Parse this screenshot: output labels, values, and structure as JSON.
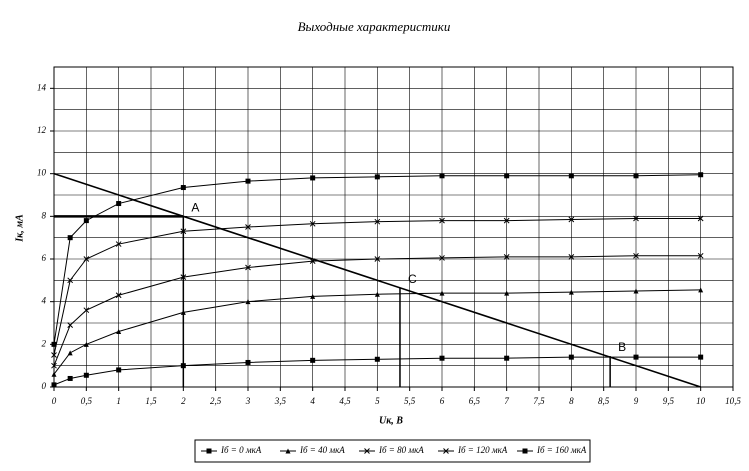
{
  "chart_data": {
    "type": "line",
    "title": "Выходные характеристики",
    "x_label": "Uк, В",
    "y_label": "Iк, мА",
    "x": [
      0,
      0.25,
      0.5,
      1,
      2,
      3,
      4,
      5,
      6,
      7,
      8,
      9,
      10
    ],
    "series": [
      {
        "name": "Iб = 0 мкА",
        "color": "#000000",
        "marker": "square",
        "values": [
          0.1,
          0.4,
          0.55,
          0.8,
          1.0,
          1.15,
          1.25,
          1.3,
          1.35,
          1.35,
          1.4,
          1.4,
          1.4
        ]
      },
      {
        "name": "Iб = 40 мкА",
        "color": "#000000",
        "marker": "triangle",
        "values": [
          0.6,
          1.6,
          2.0,
          2.6,
          3.5,
          4.0,
          4.25,
          4.35,
          4.4,
          4.4,
          4.45,
          4.5,
          4.55
        ]
      },
      {
        "name": "Iб = 80 мкА",
        "color": "#000000",
        "marker": "x",
        "values": [
          1.0,
          2.9,
          3.6,
          4.3,
          5.15,
          5.6,
          5.9,
          6.0,
          6.05,
          6.1,
          6.1,
          6.15,
          6.15
        ]
      },
      {
        "name": "Iб = 120 мкА",
        "color": "#000000",
        "marker": "x",
        "values": [
          1.5,
          5.0,
          6.0,
          6.7,
          7.3,
          7.5,
          7.65,
          7.75,
          7.8,
          7.8,
          7.85,
          7.9,
          7.9
        ]
      },
      {
        "name": "Iб = 160 мкА",
        "color": "#000000",
        "marker": "square",
        "values": [
          2.0,
          7.0,
          7.8,
          8.6,
          9.35,
          9.65,
          9.8,
          9.85,
          9.9,
          9.9,
          9.9,
          9.9,
          9.95
        ]
      }
    ],
    "load_line": {
      "x": [
        0,
        10
      ],
      "values": [
        10,
        0
      ]
    },
    "points": [
      {
        "label": "A",
        "x": 2,
        "y": 8,
        "guide": "both"
      },
      {
        "label": "C",
        "x": 5.35,
        "y": 4.65,
        "guide": "vertical"
      },
      {
        "label": "B",
        "x": 8.6,
        "y": 1.45,
        "guide": "vertical"
      }
    ],
    "xlim": [
      0,
      10.5
    ],
    "ylim": [
      0,
      15
    ],
    "xticks": [
      0,
      {
        "value": 0.5,
        "label": "0,5"
      },
      1,
      {
        "value": 1.5,
        "label": "1,5"
      },
      2,
      {
        "value": 2.5,
        "label": "2,5"
      },
      3,
      {
        "value": 3.5,
        "label": "3,5"
      },
      4,
      {
        "value": 4.5,
        "label": "4,5"
      },
      5,
      {
        "value": 5.5,
        "label": "5,5"
      },
      6,
      {
        "value": 6.5,
        "label": "6,5"
      },
      7,
      {
        "value": 7.5,
        "label": "7,5"
      },
      8,
      {
        "value": 8.5,
        "label": "8,5"
      },
      9,
      {
        "value": 9.5,
        "label": "9,5"
      },
      10,
      {
        "value": 10.5,
        "label": "10,5"
      }
    ],
    "yticks": [
      0,
      2,
      4,
      6,
      8,
      10,
      12,
      14
    ],
    "y_minor_grid": [
      1,
      3,
      5,
      7,
      9,
      11,
      13
    ],
    "grid": true,
    "legend": "bottom"
  }
}
